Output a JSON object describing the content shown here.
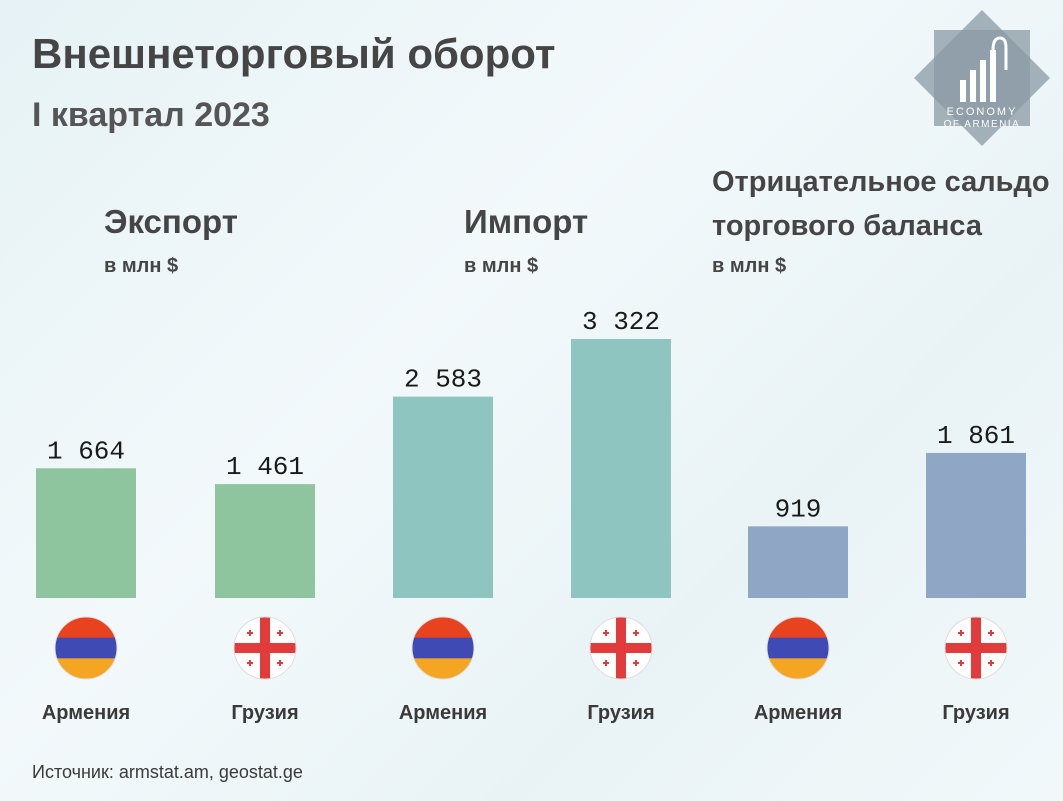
{
  "header": {
    "title": "Внешнеторговый оборот",
    "subtitle": "I квартал 2023"
  },
  "logo": {
    "line1": "ECONOMY",
    "line2": "OF ARMENIA"
  },
  "groups": [
    {
      "title_lines": [
        "Экспорт"
      ],
      "unit": "в млн $"
    },
    {
      "title_lines": [
        "Импорт"
      ],
      "unit": "в млн $"
    },
    {
      "title_lines": [
        "Отрицательное сальдо",
        "торгового баланса"
      ],
      "unit": "в млн $"
    }
  ],
  "colors": {
    "export": "#8fc59e",
    "import": "#8fc5c1",
    "balance": "#8fa7c5",
    "armenia_flag": [
      "#e8431e",
      "#3f4ab5",
      "#f4a623"
    ],
    "georgia_flag": [
      "#ffffff",
      "#e23b3b"
    ]
  },
  "chart_data": {
    "type": "bar",
    "categories": [
      "Армения",
      "Грузия",
      "Армения",
      "Грузия",
      "Армения",
      "Грузия"
    ],
    "series": [
      {
        "values": [
          1664,
          1461,
          null,
          null,
          null,
          null
        ]
      },
      {
        "values": [
          null,
          null,
          2583,
          3322,
          null,
          null
        ]
      },
      {
        "values": [
          null,
          null,
          null,
          null,
          919,
          1861
        ]
      }
    ],
    "labels": [
      "1 664",
      "1 461",
      "2 583",
      "3 322",
      "919",
      "1 861"
    ],
    "title": "Внешнеторговый оборот",
    "subtitle": "I квартал 2023",
    "ylim": [
      0,
      3322
    ],
    "grid": false,
    "legend": "none"
  },
  "footer": {
    "source": "Источник: armstat.am, geostat.ge"
  }
}
